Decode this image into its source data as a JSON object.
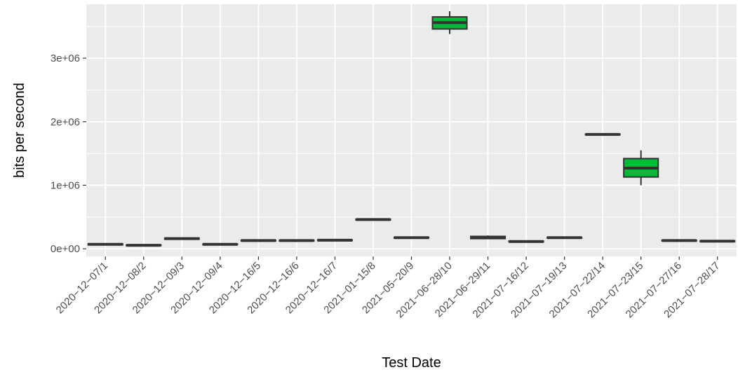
{
  "chart_data": {
    "type": "boxplot",
    "xlabel": "Test Date",
    "ylabel": "bits per second",
    "ylim": [
      -120000,
      3850000
    ],
    "yticks": [
      {
        "value": 0,
        "label": "0e+00"
      },
      {
        "value": 1000000,
        "label": "1e+06"
      },
      {
        "value": 2000000,
        "label": "2e+06"
      },
      {
        "value": 3000000,
        "label": "3e+06"
      }
    ],
    "grid": true,
    "legend": "none",
    "colors": {
      "panel": "#ebebeb",
      "grid": "#ffffff",
      "box_fill": "#00ba38",
      "box_line": "#333333",
      "tick_text": "#4d4d4d"
    },
    "categories": [
      "2020−12−07/1",
      "2020−12−08/2",
      "2020−12−09/3",
      "2020−12−09/4",
      "2020−12−16/5",
      "2020−12−16/6",
      "2020−12−16/7",
      "2021−01−15/8",
      "2021−05−20/9",
      "2021−06−28/10",
      "2021−06−29/11",
      "2021−07−16/12",
      "2021−07−19/13",
      "2021−07−22/14",
      "2021−07−23/15",
      "2021−07−27/16",
      "2021−07−28/17"
    ],
    "boxes": [
      {
        "min": 55000,
        "q1": 62000,
        "median": 70000,
        "q3": 78000,
        "max": 85000
      },
      {
        "min": 45000,
        "q1": 50000,
        "median": 55000,
        "q3": 60000,
        "max": 65000
      },
      {
        "min": 145000,
        "q1": 152000,
        "median": 160000,
        "q3": 168000,
        "max": 175000
      },
      {
        "min": 60000,
        "q1": 65000,
        "median": 70000,
        "q3": 75000,
        "max": 80000
      },
      {
        "min": 120000,
        "q1": 125000,
        "median": 130000,
        "q3": 135000,
        "max": 140000
      },
      {
        "min": 120000,
        "q1": 125000,
        "median": 130000,
        "q3": 135000,
        "max": 140000
      },
      {
        "min": 125000,
        "q1": 130000,
        "median": 135000,
        "q3": 140000,
        "max": 145000
      },
      {
        "min": 450000,
        "q1": 455000,
        "median": 460000,
        "q3": 465000,
        "max": 470000
      },
      {
        "min": 165000,
        "q1": 170000,
        "median": 175000,
        "q3": 180000,
        "max": 185000
      },
      {
        "min": 3380000,
        "q1": 3460000,
        "median": 3560000,
        "q3": 3650000,
        "max": 3740000
      },
      {
        "min": 150000,
        "q1": 160000,
        "median": 175000,
        "q3": 195000,
        "max": 210000
      },
      {
        "min": 105000,
        "q1": 110000,
        "median": 115000,
        "q3": 120000,
        "max": 125000
      },
      {
        "min": 165000,
        "q1": 170000,
        "median": 175000,
        "q3": 180000,
        "max": 185000
      },
      {
        "min": 1790000,
        "q1": 1795000,
        "median": 1800000,
        "q3": 1805000,
        "max": 1810000
      },
      {
        "min": 1000000,
        "q1": 1130000,
        "median": 1270000,
        "q3": 1420000,
        "max": 1550000
      },
      {
        "min": 120000,
        "q1": 125000,
        "median": 130000,
        "q3": 135000,
        "max": 140000
      },
      {
        "min": 110000,
        "q1": 115000,
        "median": 120000,
        "q3": 125000,
        "max": 130000
      }
    ]
  }
}
